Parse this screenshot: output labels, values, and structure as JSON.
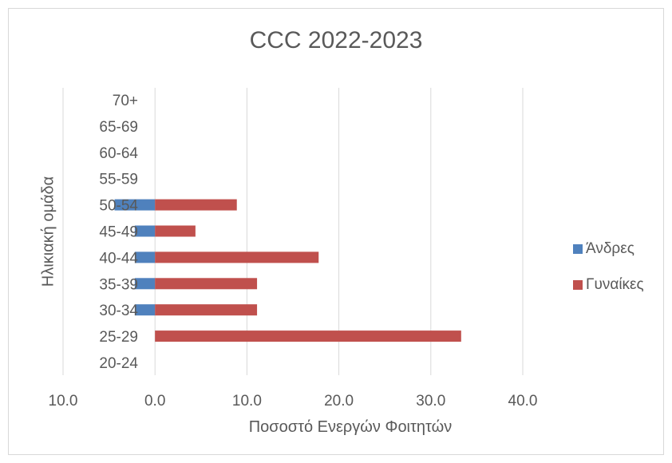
{
  "chart_data": {
    "type": "bar",
    "orientation": "horizontal",
    "title": "CCC 2022-2023",
    "xlabel": "Ποσοστό Ενεργών Φοιτητών",
    "ylabel": "Ηλικιακή ομάδα",
    "categories": [
      "20-24",
      "25-29",
      "30-34",
      "35-39",
      "40-44",
      "45-49",
      "50-54",
      "55-59",
      "60-64",
      "65-69",
      "70+"
    ],
    "series": [
      {
        "name": "Άνδρες",
        "color": "#4f81bd",
        "values": [
          0,
          0,
          -2.2,
          -2.2,
          -2.2,
          -2.2,
          -4.4,
          0,
          0,
          0,
          0
        ]
      },
      {
        "name": "Γυναίκες",
        "color": "#c0504d",
        "values": [
          0,
          33.3,
          11.1,
          11.1,
          17.8,
          4.4,
          8.9,
          0,
          0,
          0,
          0
        ]
      }
    ],
    "xlim": [
      -10,
      40
    ],
    "xticks": [
      -10,
      0,
      10,
      20,
      30,
      40
    ],
    "xtick_labels": [
      "10.0",
      "0.0",
      "10.0",
      "20.0",
      "30.0",
      "40.0"
    ],
    "grid": "vertical",
    "legend_position": "right"
  }
}
